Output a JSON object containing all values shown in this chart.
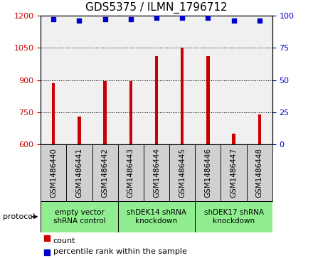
{
  "title": "GDS5375 / ILMN_1796712",
  "samples": [
    "GSM1486440",
    "GSM1486441",
    "GSM1486442",
    "GSM1486443",
    "GSM1486444",
    "GSM1486445",
    "GSM1486446",
    "GSM1486447",
    "GSM1486448"
  ],
  "counts": [
    885,
    730,
    895,
    895,
    1010,
    1050,
    1010,
    650,
    740
  ],
  "percentile_ranks": [
    97,
    96,
    97,
    97,
    98,
    98,
    98,
    96,
    96
  ],
  "ylim_left": [
    600,
    1200
  ],
  "ylim_right": [
    0,
    100
  ],
  "yticks_left": [
    600,
    750,
    900,
    1050,
    1200
  ],
  "yticks_right": [
    0,
    25,
    50,
    75,
    100
  ],
  "bar_color": "#CC0000",
  "dot_color": "#0000CC",
  "protocols": [
    {
      "label": "empty vector\nshRNA control",
      "start": 0,
      "end": 3,
      "color": "#90EE90"
    },
    {
      "label": "shDEK14 shRNA\nknockdown",
      "start": 3,
      "end": 6,
      "color": "#90EE90"
    },
    {
      "label": "shDEK17 shRNA\nknockdown",
      "start": 6,
      "end": 9,
      "color": "#90EE90"
    }
  ],
  "legend_count_label": "count",
  "legend_percentile_label": "percentile rank within the sample",
  "protocol_label": "protocol",
  "bar_width": 0.12,
  "sample_label_fontsize": 7.5,
  "protocol_label_fontsize": 7.5,
  "title_fontsize": 11,
  "sample_box_color": "#D0D0D0",
  "plot_bg_color": "#F0F0F0"
}
